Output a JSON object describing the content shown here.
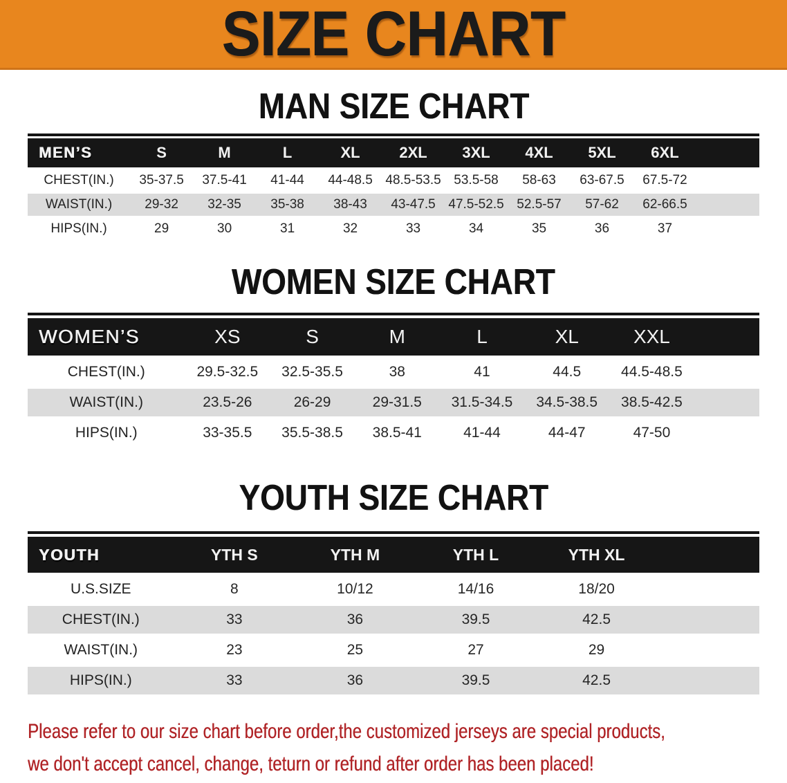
{
  "banner": {
    "title": "SIZE CHART"
  },
  "theme": {
    "banner_orange": "#E8861E",
    "header_bar_black": "#161616",
    "stripe_gray": "#DBDBDB",
    "notice_red": "#B02427"
  },
  "sections": [
    {
      "id": "men",
      "heading": "MAN SIZE CHART",
      "table": {
        "label": "MEN’S",
        "columns": [
          "S",
          "M",
          "L",
          "XL",
          "2XL",
          "3XL",
          "4XL",
          "5XL",
          "6XL"
        ],
        "rows": [
          {
            "label": "CHEST(IN.)",
            "values": [
              "35-37.5",
              "37.5-41",
              "41-44",
              "44-48.5",
              "48.5-53.5",
              "53.5-58",
              "58-63",
              "63-67.5",
              "67.5-72"
            ]
          },
          {
            "label": "WAIST(IN.)",
            "values": [
              "29-32",
              "32-35",
              "35-38",
              "38-43",
              "43-47.5",
              "47.5-52.5",
              "52.5-57",
              "57-62",
              "62-66.5"
            ]
          },
          {
            "label": "HIPS(IN.)",
            "values": [
              "29",
              "30",
              "31",
              "32",
              "33",
              "34",
              "35",
              "36",
              "37"
            ]
          }
        ]
      }
    },
    {
      "id": "women",
      "heading": "WOMEN SIZE CHART",
      "table": {
        "label": "WOMEN’S",
        "columns": [
          "XS",
          "S",
          "M",
          "L",
          "XL",
          "XXL"
        ],
        "rows": [
          {
            "label": "CHEST(IN.)",
            "values": [
              "29.5-32.5",
              "32.5-35.5",
              "38",
              "41",
              "44.5",
              "44.5-48.5"
            ]
          },
          {
            "label": "WAIST(IN.)",
            "values": [
              "23.5-26",
              "26-29",
              "29-31.5",
              "31.5-34.5",
              "34.5-38.5",
              "38.5-42.5"
            ]
          },
          {
            "label": "HIPS(IN.)",
            "values": [
              "33-35.5",
              "35.5-38.5",
              "38.5-41",
              "41-44",
              "44-47",
              "47-50"
            ]
          }
        ]
      }
    },
    {
      "id": "youth",
      "heading": "YOUTH SIZE CHART",
      "table": {
        "label": "YOUTH",
        "columns": [
          "YTH S",
          "YTH M",
          "YTH L",
          "YTH XL"
        ],
        "rows": [
          {
            "label": "U.S.SIZE",
            "values": [
              "8",
              "10/12",
              "14/16",
              "18/20"
            ]
          },
          {
            "label": "CHEST(IN.)",
            "values": [
              "33",
              "36",
              "39.5",
              "42.5"
            ]
          },
          {
            "label": "WAIST(IN.)",
            "values": [
              "23",
              "25",
              "27",
              "29"
            ]
          },
          {
            "label": "HIPS(IN.)",
            "values": [
              "33",
              "36",
              "39.5",
              "42.5"
            ]
          }
        ]
      }
    }
  ],
  "notice": {
    "lines": [
      "Please refer to our size chart before order,the customized jerseys are special products,",
      "we don't accept cancel, change, teturn or refund after order has been placed!"
    ]
  }
}
